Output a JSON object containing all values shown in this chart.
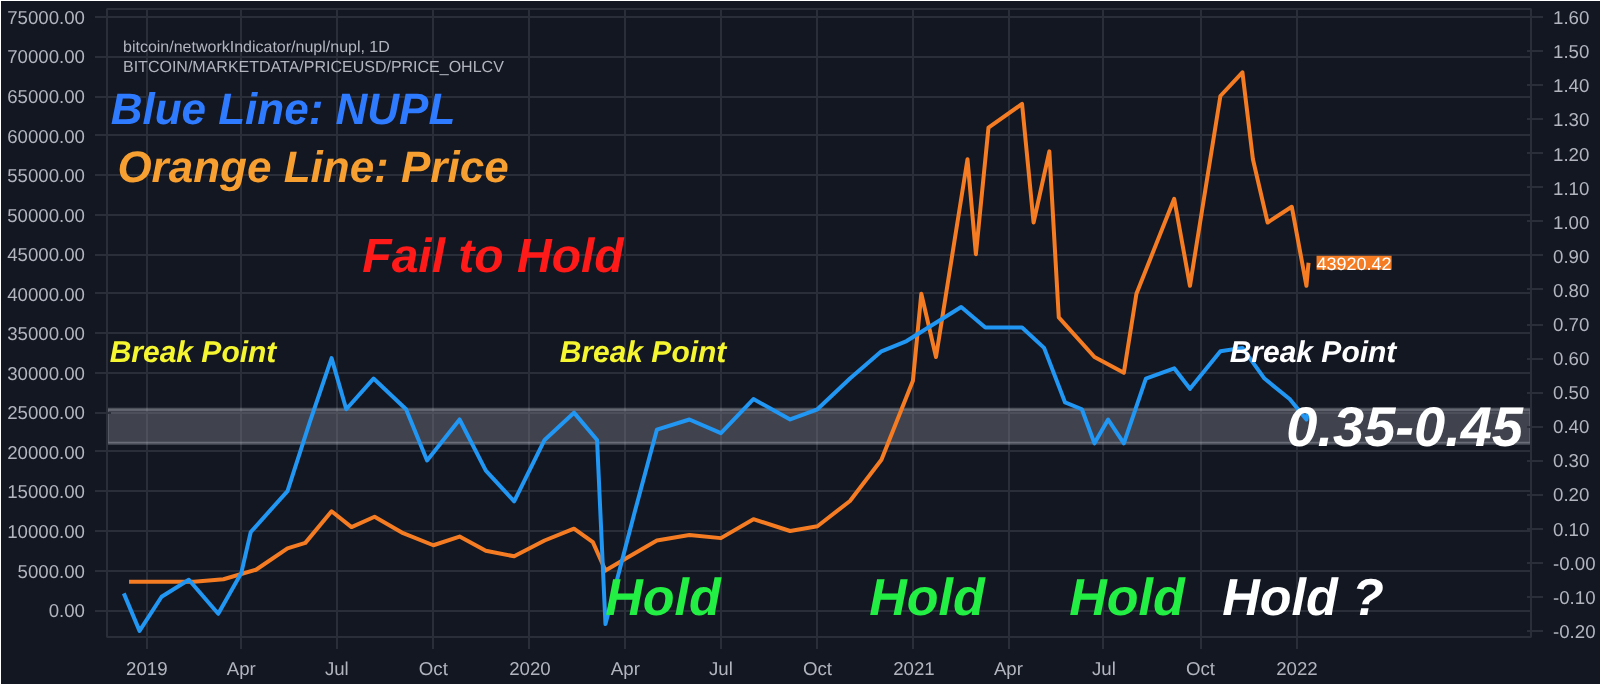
{
  "chart_data": {
    "type": "line",
    "title": "bitcoin/networkIndicator/nupl/nupl, 1D",
    "subtitle": "BITCOIN/MARKETDATA/PRICEUSD/PRICE_OHLCV",
    "xlim": [
      "2018-11-24",
      "2022-08-12"
    ],
    "xticks": [
      {
        "value": "2019-01-01",
        "label": "2019"
      },
      {
        "value": "2019-04-01",
        "label": "Apr"
      },
      {
        "value": "2019-07-01",
        "label": "Jul"
      },
      {
        "value": "2019-10-01",
        "label": "Oct"
      },
      {
        "value": "2020-01-01",
        "label": "2020"
      },
      {
        "value": "2020-04-01",
        "label": "Apr"
      },
      {
        "value": "2020-07-01",
        "label": "Jul"
      },
      {
        "value": "2020-10-01",
        "label": "Oct"
      },
      {
        "value": "2021-01-01",
        "label": "2021"
      },
      {
        "value": "2021-04-01",
        "label": "Apr"
      },
      {
        "value": "2021-07-01",
        "label": "Jul"
      },
      {
        "value": "2021-10-01",
        "label": "Oct"
      },
      {
        "value": "2022-01-01",
        "label": "2022"
      }
    ],
    "ylim": [
      -3400,
      76000
    ],
    "yticks": [
      {
        "value": 0,
        "label": "0.00"
      },
      {
        "value": 5000,
        "label": "5000.00"
      },
      {
        "value": 10000,
        "label": "10000.00"
      },
      {
        "value": 15000,
        "label": "15000.00"
      },
      {
        "value": 20000,
        "label": "20000.00"
      },
      {
        "value": 25000,
        "label": "25000.00"
      },
      {
        "value": 30000,
        "label": "30000.00"
      },
      {
        "value": 35000,
        "label": "35000.00"
      },
      {
        "value": 40000,
        "label": "40000.00"
      },
      {
        "value": 45000,
        "label": "45000.00"
      },
      {
        "value": 50000,
        "label": "50000.00"
      },
      {
        "value": 55000,
        "label": "55000.00"
      },
      {
        "value": 60000,
        "label": "60000.00"
      },
      {
        "value": 65000,
        "label": "65000.00"
      },
      {
        "value": 70000,
        "label": "70000.00"
      },
      {
        "value": 75000,
        "label": "75000.00"
      }
    ],
    "y2lim": [
      -0.218,
      1.624
    ],
    "y2ticks": [
      {
        "value": -0.2,
        "label": "-0.20"
      },
      {
        "value": -0.1,
        "label": "-0.10"
      },
      {
        "value": 0,
        "label": "-0.00"
      },
      {
        "value": 0.1,
        "label": "0.10"
      },
      {
        "value": 0.2,
        "label": "0.20"
      },
      {
        "value": 0.3,
        "label": "0.30"
      },
      {
        "value": 0.4,
        "label": "0.40"
      },
      {
        "value": 0.5,
        "label": "0.50"
      },
      {
        "value": 0.6,
        "label": "0.60"
      },
      {
        "value": 0.7,
        "label": "0.70"
      },
      {
        "value": 0.8,
        "label": "0.80"
      },
      {
        "value": 0.9,
        "label": "0.90"
      },
      {
        "value": 1.0,
        "label": "1.00"
      },
      {
        "value": 1.1,
        "label": "1.10"
      },
      {
        "value": 1.2,
        "label": "1.20"
      },
      {
        "value": 1.3,
        "label": "1.30"
      },
      {
        "value": 1.4,
        "label": "1.40"
      },
      {
        "value": 1.5,
        "label": "1.50"
      },
      {
        "value": 1.6,
        "label": "1.60"
      }
    ],
    "grid": true,
    "series": [
      {
        "color": "#f57c22",
        "x": [
          "2018-12-15",
          "2019-01-15",
          "2019-02-15",
          "2019-03-15",
          "2019-04-15",
          "2019-05-15",
          "2019-06-01",
          "2019-06-26",
          "2019-07-15",
          "2019-08-06",
          "2019-09-01",
          "2019-10-01",
          "2019-10-26",
          "2019-11-20",
          "2019-12-17",
          "2020-01-15",
          "2020-02-12",
          "2020-03-01",
          "2020-03-13",
          "2020-04-01",
          "2020-05-01",
          "2020-06-01",
          "2020-07-01",
          "2020-08-01",
          "2020-09-05",
          "2020-10-01",
          "2020-11-01",
          "2020-12-01",
          "2020-12-31",
          "2021-01-08",
          "2021-01-22",
          "2021-02-21",
          "2021-03-01",
          "2021-03-13",
          "2021-04-14",
          "2021-04-25",
          "2021-05-10",
          "2021-05-19",
          "2021-06-22",
          "2021-07-20",
          "2021-08-01",
          "2021-09-06",
          "2021-09-21",
          "2021-10-20",
          "2021-11-10",
          "2021-11-20",
          "2021-12-04",
          "2021-12-27",
          "2022-01-10",
          "2022-01-12"
        ],
        "values": [
          3600,
          3600,
          3600,
          3900,
          5100,
          7800,
          8500,
          12500,
          10500,
          11800,
          9800,
          8200,
          9300,
          7500,
          6800,
          8800,
          10300,
          8600,
          5000,
          6500,
          8800,
          9500,
          9100,
          11500,
          10000,
          10600,
          13800,
          19000,
          29000,
          40000,
          32000,
          57000,
          45000,
          61000,
          64000,
          49000,
          58000,
          37000,
          32000,
          30000,
          40000,
          52000,
          41000,
          65000,
          68000,
          57000,
          49000,
          51000,
          41000,
          43920.42
        ]
      },
      {
        "color": "#2196f3",
        "axis": "y2",
        "x": [
          "2018-12-10",
          "2018-12-25",
          "2019-01-15",
          "2019-02-10",
          "2019-03-10",
          "2019-04-01",
          "2019-04-10",
          "2019-05-15",
          "2019-06-05",
          "2019-06-26",
          "2019-07-10",
          "2019-08-05",
          "2019-09-05",
          "2019-09-25",
          "2019-10-26",
          "2019-11-20",
          "2019-12-17",
          "2020-01-15",
          "2020-02-12",
          "2020-03-05",
          "2020-03-13",
          "2020-04-10",
          "2020-05-01",
          "2020-06-01",
          "2020-07-01",
          "2020-08-01",
          "2020-09-05",
          "2020-10-01",
          "2020-11-01",
          "2020-12-01",
          "2020-12-25",
          "2021-02-15",
          "2021-03-10",
          "2021-04-14",
          "2021-05-05",
          "2021-05-25",
          "2021-06-10",
          "2021-06-22",
          "2021-07-05",
          "2021-07-20",
          "2021-08-10",
          "2021-09-06",
          "2021-09-21",
          "2021-10-20",
          "2021-11-10",
          "2021-12-01",
          "2021-12-25",
          "2022-01-10",
          "2022-01-12"
        ],
        "values": [
          -0.09,
          -0.2,
          -0.1,
          -0.05,
          -0.15,
          -0.03,
          0.09,
          0.21,
          0.41,
          0.6,
          0.45,
          0.54,
          0.45,
          0.3,
          0.42,
          0.27,
          0.18,
          0.36,
          0.44,
          0.36,
          -0.18,
          0.15,
          0.39,
          0.42,
          0.38,
          0.48,
          0.42,
          0.45,
          0.54,
          0.62,
          0.65,
          0.75,
          0.69,
          0.69,
          0.63,
          0.47,
          0.45,
          0.35,
          0.42,
          0.35,
          0.54,
          0.57,
          0.51,
          0.62,
          0.63,
          0.54,
          0.48,
          0.42,
          0.45
        ]
      }
    ],
    "bands": [
      {
        "axis": "y2",
        "from": 0.35,
        "to": 0.45,
        "label": "0.35-0.45",
        "color": "#787b86"
      }
    ],
    "annotations": [
      "Blue Line: NUPL",
      "Orange Line: Price",
      "Fail to Hold",
      "Break Point",
      "Break Point",
      "Break Point",
      "Hold",
      "Hold",
      "Hold",
      "Hold ?",
      {
        "text": "43920.42",
        "x": "2022-01-12",
        "y": 43920.42
      }
    ]
  }
}
